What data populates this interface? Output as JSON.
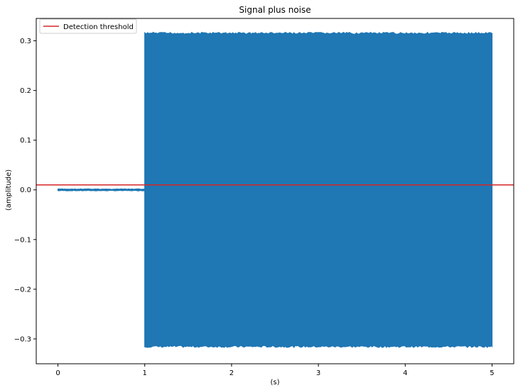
{
  "chart_data": {
    "type": "line",
    "title": "Signal plus noise",
    "xlabel": "(s)",
    "ylabel": "(amplitude)",
    "xlim": [
      -0.25,
      5.25
    ],
    "ylim": [
      -0.35,
      0.345
    ],
    "x_ticks": [
      0,
      1,
      2,
      3,
      4,
      5
    ],
    "y_ticks": [
      -0.3,
      -0.2,
      -0.1,
      0.0,
      0.1,
      0.2,
      0.3
    ],
    "grid": false,
    "legend_position": "top-left",
    "series": [
      {
        "color": "#1f77b4",
        "segments": [
          {
            "x_start": 0.0,
            "x_end": 1.0,
            "min": -0.002,
            "max": 0.002
          },
          {
            "x_start": 1.0,
            "x_end": 5.0,
            "min": -0.317,
            "max": 0.317
          }
        ]
      }
    ],
    "threshold": {
      "name": "Detection threshold",
      "value": 0.01,
      "color": "#d62728"
    }
  }
}
